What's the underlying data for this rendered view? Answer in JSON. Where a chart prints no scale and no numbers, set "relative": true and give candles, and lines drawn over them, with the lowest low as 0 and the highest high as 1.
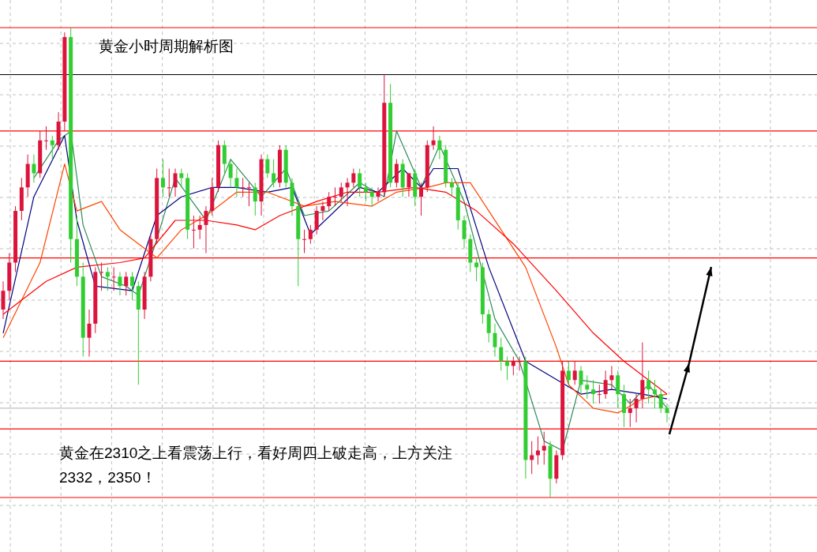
{
  "chart_data": {
    "type": "candlestick",
    "title": "黄金小时周期解析图",
    "annotations": [
      "黄金在2310之上看震荡上行，看好周四上破走高，上方关注2332，2350！"
    ],
    "relative": true,
    "grid": true,
    "colors": [
      "#dc143c",
      "#dc143c",
      "#dc143c",
      "#dc143c",
      "#dc143c",
      "#32cd32",
      "#dc143c",
      "#dc143c",
      "#32cd32",
      "#dc143c",
      "#dc143c",
      "#32cd32",
      "#32cd32",
      "#32cd32",
      "#dc143c",
      "#dc143c",
      "#dc143c",
      "#32cd32",
      "#dc143c",
      "#32cd32",
      "#dc143c",
      "#32cd32",
      "#32cd32",
      "#dc143c",
      "#dc143c",
      "#dc143c",
      "#32cd32",
      "#dc143c",
      "#dc143c",
      "#32cd32",
      "#32cd32",
      "#dc143c",
      "#dc143c",
      "#dc143c",
      "#dc143c",
      "#dc143c",
      "#32cd32",
      "#32cd32",
      "#32cd32",
      "#dc143c",
      "#dc143c",
      "#32cd32",
      "#dc143c",
      "#32cd32",
      "#32cd32",
      "#dc143c",
      "#32cd32",
      "#32cd32",
      "#32cd32",
      "#dc143c",
      "#dc143c",
      "#dc143c",
      "#dc143c",
      "#dc143c",
      "#dc143c",
      "#dc143c",
      "#dc143c",
      "#dc143c",
      "#32cd32",
      "#32cd32",
      "#32cd32",
      "#dc143c",
      "#dc143c",
      "#32cd32",
      "#dc143c",
      "#32cd32",
      "#dc143c",
      "#32cd32",
      "#dc143c",
      "#dc143c",
      "#dc143c",
      "#32cd32",
      "#32cd32",
      "#32cd32",
      "#32cd32",
      "#32cd32",
      "#32cd32",
      "#32cd32",
      "#32cd32",
      "#32cd32",
      "#32cd32",
      "#32cd32",
      "#32cd32",
      "#dc143c",
      "#dc143c",
      "#32cd32",
      "#dc143c",
      "#dc143c",
      "#dc143c",
      "#32cd32",
      "#dc143c",
      "#dc143c",
      "#32cd32",
      "#dc143c",
      "#32cd32",
      "#32cd32",
      "#32cd32",
      "#dc143c",
      "#dc143c",
      "#dc143c",
      "#32cd32",
      "#32cd32",
      "#dc143c",
      "#dc143c",
      "#dc143c",
      "#32cd32",
      "#32cd32",
      "#32cd32",
      "#32cd32"
    ],
    "categories": [
      null,
      null,
      null,
      null,
      null,
      null,
      null,
      null,
      null,
      null,
      null,
      null,
      null,
      null,
      null,
      null,
      null,
      null,
      null,
      null,
      null,
      null,
      null,
      null,
      null,
      null,
      null,
      null,
      null,
      null,
      null,
      null,
      null,
      null,
      null,
      null,
      null,
      null,
      null,
      null,
      null,
      null,
      null,
      null,
      null,
      null,
      null,
      null,
      null,
      null,
      null,
      null,
      null,
      null,
      null,
      null,
      null,
      null,
      null,
      null,
      null,
      null,
      null,
      null,
      null,
      null,
      null,
      null,
      null,
      null,
      null,
      null,
      null,
      null,
      null,
      null,
      null,
      null,
      null,
      null,
      null,
      null,
      null,
      null,
      null,
      null,
      null,
      null,
      null,
      null,
      null,
      null,
      null,
      null,
      null,
      null,
      null,
      null,
      null,
      null,
      null,
      null,
      null,
      null,
      null,
      null,
      null,
      null,
      null
    ],
    "ohlc": [
      [
        0.4,
        0.46,
        0.38,
        0.44
      ],
      [
        0.44,
        0.52,
        0.42,
        0.5
      ],
      [
        0.5,
        0.62,
        0.48,
        0.61
      ],
      [
        0.61,
        0.68,
        0.59,
        0.66
      ],
      [
        0.66,
        0.73,
        0.64,
        0.71
      ],
      [
        0.71,
        0.73,
        0.67,
        0.69
      ],
      [
        0.69,
        0.78,
        0.68,
        0.76
      ],
      [
        0.76,
        0.79,
        0.74,
        0.76
      ],
      [
        0.76,
        0.77,
        0.72,
        0.75
      ],
      [
        0.75,
        0.82,
        0.74,
        0.8
      ],
      [
        0.8,
        0.99,
        0.78,
        0.98
      ],
      [
        0.98,
        1.0,
        0.5,
        0.55
      ],
      [
        0.55,
        0.6,
        0.45,
        0.47
      ],
      [
        0.47,
        0.5,
        0.3,
        0.34
      ],
      [
        0.34,
        0.4,
        0.3,
        0.37
      ],
      [
        0.37,
        0.49,
        0.35,
        0.48
      ],
      [
        0.48,
        0.5,
        0.44,
        0.48
      ],
      [
        0.48,
        0.49,
        0.44,
        0.47
      ],
      [
        0.47,
        0.49,
        0.44,
        0.47
      ],
      [
        0.47,
        0.48,
        0.43,
        0.45
      ],
      [
        0.45,
        0.48,
        0.43,
        0.47
      ],
      [
        0.47,
        0.48,
        0.42,
        0.45
      ],
      [
        0.45,
        0.46,
        0.24,
        0.4
      ],
      [
        0.4,
        0.48,
        0.38,
        0.47
      ],
      [
        0.47,
        0.56,
        0.46,
        0.55
      ],
      [
        0.55,
        0.7,
        0.54,
        0.68
      ],
      [
        0.68,
        0.72,
        0.64,
        0.66
      ],
      [
        0.66,
        0.7,
        0.64,
        0.66
      ],
      [
        0.66,
        0.7,
        0.64,
        0.69
      ],
      [
        0.69,
        0.7,
        0.66,
        0.68
      ],
      [
        0.68,
        0.69,
        0.55,
        0.57
      ],
      [
        0.57,
        0.6,
        0.53,
        0.57
      ],
      [
        0.57,
        0.6,
        0.55,
        0.58
      ],
      [
        0.58,
        0.62,
        0.52,
        0.61
      ],
      [
        0.61,
        0.68,
        0.6,
        0.66
      ],
      [
        0.66,
        0.76,
        0.65,
        0.75
      ],
      [
        0.75,
        0.76,
        0.69,
        0.71
      ],
      [
        0.71,
        0.72,
        0.66,
        0.68
      ],
      [
        0.68,
        0.7,
        0.64,
        0.66
      ],
      [
        0.66,
        0.68,
        0.64,
        0.66
      ],
      [
        0.66,
        0.67,
        0.62,
        0.66
      ],
      [
        0.66,
        0.67,
        0.6,
        0.63
      ],
      [
        0.63,
        0.73,
        0.6,
        0.72
      ],
      [
        0.72,
        0.73,
        0.68,
        0.69
      ],
      [
        0.69,
        0.72,
        0.66,
        0.67
      ],
      [
        0.67,
        0.75,
        0.66,
        0.74
      ],
      [
        0.74,
        0.75,
        0.66,
        0.67
      ],
      [
        0.67,
        0.68,
        0.6,
        0.62
      ],
      [
        0.62,
        0.63,
        0.45,
        0.55
      ],
      [
        0.55,
        0.57,
        0.52,
        0.55
      ],
      [
        0.55,
        0.58,
        0.54,
        0.57
      ],
      [
        0.57,
        0.62,
        0.56,
        0.61
      ],
      [
        0.61,
        0.63,
        0.59,
        0.62
      ],
      [
        0.62,
        0.65,
        0.61,
        0.64
      ],
      [
        0.64,
        0.66,
        0.62,
        0.64
      ],
      [
        0.64,
        0.67,
        0.63,
        0.66
      ],
      [
        0.66,
        0.68,
        0.62,
        0.67
      ],
      [
        0.67,
        0.7,
        0.66,
        0.69
      ],
      [
        0.69,
        0.7,
        0.64,
        0.66
      ],
      [
        0.66,
        0.67,
        0.63,
        0.65
      ],
      [
        0.65,
        0.66,
        0.62,
        0.64
      ],
      [
        0.64,
        0.66,
        0.63,
        0.65
      ],
      [
        0.65,
        0.9,
        0.64,
        0.84
      ],
      [
        0.84,
        0.88,
        0.66,
        0.67
      ],
      [
        0.67,
        0.72,
        0.66,
        0.71
      ],
      [
        0.71,
        0.72,
        0.64,
        0.66
      ],
      [
        0.66,
        0.69,
        0.64,
        0.69
      ],
      [
        0.69,
        0.7,
        0.62,
        0.64
      ],
      [
        0.64,
        0.67,
        0.6,
        0.66
      ],
      [
        0.66,
        0.76,
        0.65,
        0.75
      ],
      [
        0.75,
        0.79,
        0.74,
        0.76
      ],
      [
        0.76,
        0.77,
        0.72,
        0.74
      ],
      [
        0.74,
        0.75,
        0.66,
        0.67
      ],
      [
        0.67,
        0.68,
        0.64,
        0.66
      ],
      [
        0.66,
        0.67,
        0.57,
        0.59
      ],
      [
        0.59,
        0.6,
        0.53,
        0.55
      ],
      [
        0.55,
        0.56,
        0.48,
        0.5
      ],
      [
        0.5,
        0.51,
        0.46,
        0.49
      ],
      [
        0.49,
        0.5,
        0.37,
        0.39
      ],
      [
        0.39,
        0.4,
        0.33,
        0.35
      ],
      [
        0.35,
        0.37,
        0.3,
        0.32
      ],
      [
        0.32,
        0.34,
        0.27,
        0.29
      ],
      [
        0.29,
        0.3,
        0.25,
        0.28
      ],
      [
        0.28,
        0.3,
        0.26,
        0.29
      ],
      [
        0.29,
        0.3,
        0.27,
        0.29
      ],
      [
        0.29,
        0.3,
        0.04,
        0.08
      ],
      [
        0.08,
        0.12,
        0.05,
        0.09
      ],
      [
        0.09,
        0.13,
        0.07,
        0.1
      ],
      [
        0.1,
        0.14,
        0.07,
        0.11
      ],
      [
        0.11,
        0.12,
        0.0,
        0.04
      ],
      [
        0.04,
        0.1,
        0.03,
        0.09
      ],
      [
        0.09,
        0.29,
        0.08,
        0.27
      ],
      [
        0.27,
        0.29,
        0.24,
        0.25
      ],
      [
        0.25,
        0.29,
        0.24,
        0.27
      ],
      [
        0.27,
        0.28,
        0.22,
        0.24
      ],
      [
        0.24,
        0.26,
        0.21,
        0.23
      ],
      [
        0.23,
        0.25,
        0.2,
        0.22
      ],
      [
        0.22,
        0.24,
        0.2,
        0.22
      ],
      [
        0.22,
        0.27,
        0.21,
        0.25
      ],
      [
        0.25,
        0.28,
        0.23,
        0.26
      ],
      [
        0.26,
        0.27,
        0.19,
        0.22
      ],
      [
        0.22,
        0.24,
        0.15,
        0.18
      ],
      [
        0.18,
        0.21,
        0.15,
        0.19
      ],
      [
        0.19,
        0.22,
        0.16,
        0.21
      ],
      [
        0.21,
        0.33,
        0.19,
        0.25
      ],
      [
        0.25,
        0.27,
        0.2,
        0.23
      ],
      [
        0.23,
        0.25,
        0.19,
        0.22
      ],
      [
        0.22,
        0.23,
        0.18,
        0.19
      ],
      [
        0.19,
        0.2,
        0.16,
        0.18
      ]
    ],
    "series": [
      {
        "type": "line",
        "color": "#2e8b57",
        "values": [
          null,
          null,
          null,
          null,
          null,
          0.68,
          null,
          null,
          null,
          0.76,
          null,
          0.78,
          null,
          0.58,
          null,
          null,
          0.47,
          null,
          null,
          null,
          0.45,
          null,
          0.43,
          null,
          null,
          0.55,
          null,
          null,
          0.68,
          null,
          null,
          null,
          null,
          0.59,
          null,
          null,
          null,
          0.72,
          null,
          null,
          null,
          null,
          0.64,
          null,
          null,
          null,
          0.7,
          null,
          null,
          0.6,
          null,
          null,
          null,
          0.61,
          null,
          null,
          null,
          null,
          0.67,
          null,
          null,
          null,
          0.64,
          null,
          0.78,
          null,
          null,
          null,
          0.66,
          null,
          null,
          0.75,
          null,
          null,
          null,
          0.63,
          null,
          null,
          null,
          null,
          0.38,
          null,
          null,
          null,
          0.29,
          null,
          null,
          null,
          0.12,
          null,
          null,
          0.1,
          null,
          null,
          0.25,
          null,
          null,
          null,
          null,
          0.24,
          null,
          null,
          0.2,
          null,
          null,
          0.24,
          null,
          null,
          0.19
        ]
      },
      {
        "type": "line",
        "color": "#000080",
        "values": [
          0.35,
          null,
          null,
          null,
          null,
          0.64,
          null,
          null,
          null,
          null,
          0.77,
          null,
          0.59,
          null,
          null,
          0.45,
          null,
          null,
          null,
          null,
          null,
          0.44,
          null,
          null,
          null,
          0.6,
          null,
          null,
          null,
          0.64,
          null,
          null,
          null,
          null,
          0.66,
          null,
          null,
          null,
          0.66,
          null,
          null,
          null,
          null,
          0.65,
          null,
          null,
          null,
          0.66,
          null,
          null,
          0.56,
          null,
          null,
          null,
          null,
          null,
          null,
          null,
          0.66,
          null,
          null,
          0.65,
          null,
          null,
          null,
          0.7,
          null,
          null,
          0.66,
          null,
          0.7,
          null,
          null,
          null,
          0.7,
          null,
          null,
          null,
          null,
          0.49,
          null,
          null,
          null,
          null,
          null,
          0.29,
          null,
          null,
          null,
          null,
          null,
          null,
          null,
          null,
          0.22,
          null,
          null,
          null,
          null,
          0.23,
          null,
          null,
          null,
          null,
          0.22,
          null,
          null,
          null,
          0.21
        ]
      },
      {
        "type": "line",
        "color": "#ff4500",
        "values": [
          0.34,
          null,
          null,
          null,
          null,
          null,
          0.5,
          null,
          null,
          null,
          0.71,
          null,
          0.61,
          null,
          null,
          null,
          0.63,
          null,
          null,
          0.57,
          null,
          null,
          null,
          null,
          null,
          0.51,
          null,
          null,
          null,
          0.57,
          null,
          null,
          null,
          0.6,
          null,
          null,
          null,
          null,
          0.65,
          null,
          null,
          null,
          null,
          0.65,
          null,
          null,
          null,
          null,
          null,
          0.62,
          null,
          null,
          null,
          null,
          0.63,
          null,
          null,
          null,
          null,
          null,
          0.62,
          null,
          null,
          null,
          0.65,
          null,
          null,
          null,
          null,
          0.66,
          null,
          null,
          0.67,
          null,
          null,
          null,
          0.67,
          null,
          null,
          0.61,
          null,
          null,
          null,
          null,
          null,
          0.49,
          null,
          null,
          null,
          null,
          0.32,
          null,
          0.24,
          null,
          null,
          null,
          0.19,
          null,
          null,
          null,
          0.18,
          null,
          null,
          null,
          0.21,
          null,
          null,
          null,
          0.22
        ]
      },
      {
        "type": "line",
        "color": "#ff0000",
        "values": [
          0.39,
          null,
          null,
          null,
          null,
          null,
          null,
          0.46,
          null,
          null,
          null,
          null,
          0.49,
          null,
          null,
          null,
          null,
          null,
          null,
          0.5,
          null,
          null,
          null,
          0.51,
          null,
          null,
          null,
          null,
          0.59,
          null,
          null,
          null,
          null,
          0.59,
          null,
          null,
          null,
          null,
          0.58,
          null,
          null,
          0.57,
          null,
          null,
          null,
          0.6,
          null,
          null,
          null,
          null,
          null,
          0.63,
          null,
          null,
          null,
          null,
          0.65,
          null,
          null,
          null,
          null,
          0.65,
          null,
          null,
          null,
          null,
          null,
          0.66,
          null,
          null,
          null,
          null,
          0.65,
          null,
          null,
          null,
          null,
          0.61,
          null,
          null,
          null,
          null,
          null,
          0.54,
          null,
          null,
          null,
          null,
          null,
          null,
          0.44,
          null,
          null,
          null,
          null,
          null,
          0.35,
          null,
          null,
          null,
          null,
          0.29,
          null,
          null,
          null,
          0.25,
          null,
          null,
          0.22
        ]
      }
    ],
    "ref_lines": [
      {
        "axis": "y",
        "value": 1.0,
        "color": "#ff0000"
      },
      {
        "axis": "y",
        "value": 0.9,
        "color": "#000000"
      },
      {
        "axis": "y",
        "value": 0.78,
        "color": "#ff0000"
      },
      {
        "axis": "y",
        "value": 0.51,
        "color": "#ff0000"
      },
      {
        "axis": "y",
        "value": 0.29,
        "color": "#ff0000"
      },
      {
        "axis": "y",
        "value": 0.19,
        "color": "#c0c0c0"
      },
      {
        "axis": "y",
        "value": 0.146,
        "color": "#ff0000"
      },
      {
        "axis": "y",
        "value": 0.0,
        "color": "#ff0000"
      }
    ]
  }
}
